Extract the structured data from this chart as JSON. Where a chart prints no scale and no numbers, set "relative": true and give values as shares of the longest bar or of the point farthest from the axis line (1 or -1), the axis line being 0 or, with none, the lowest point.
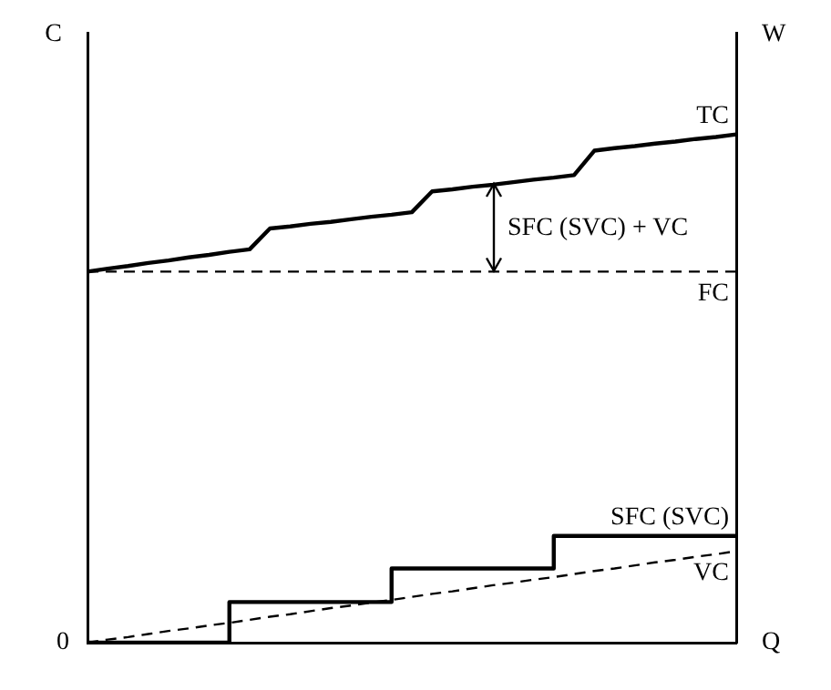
{
  "chart_data": {
    "type": "line",
    "relative": true,
    "ylabel": "C",
    "y2label": "W",
    "xlabel": "Q",
    "legend": false,
    "marker": "none",
    "grid": false,
    "categories": [
      null,
      null,
      null,
      null,
      null,
      null,
      null,
      null,
      null,
      null,
      null,
      null,
      null,
      null,
      null,
      null,
      null,
      null,
      null,
      null,
      null,
      null,
      null,
      null,
      null,
      null,
      null,
      null,
      null,
      null,
      null,
      null,
      null
    ],
    "series": [
      {
        "name": "TC",
        "color": "#000000",
        "line_style": "solid",
        "values": [
          0.73,
          0.736,
          0.741,
          0.747,
          0.752,
          0.758,
          0.763,
          0.769,
          0.774,
          0.815,
          0.819,
          0.824,
          0.828,
          0.833,
          0.838,
          0.842,
          0.847,
          0.888,
          0.892,
          0.897,
          0.901,
          0.906,
          0.911,
          0.915,
          0.92,
          0.968,
          0.973,
          0.977,
          0.982,
          0.986,
          0.991,
          0.995,
          1
        ]
      },
      {
        "name": "FC",
        "color": "#000000",
        "line_style": "dashed",
        "values": [
          0.73,
          0.73,
          0.73,
          0.73,
          0.73,
          0.73,
          0.73,
          0.73,
          0.73,
          0.73,
          0.73,
          0.73,
          0.73,
          0.73,
          0.73,
          0.73,
          0.73,
          0.73,
          0.73,
          0.73,
          0.73,
          0.73,
          0.73,
          0.73,
          0.73,
          0.73,
          0.73,
          0.73,
          0.73,
          0.73,
          0.73,
          0.73,
          0.73
        ]
      },
      {
        "name": "SFC (SVC)",
        "type": "step",
        "color": "#000000",
        "line_style": "solid",
        "values": [
          0,
          0,
          0,
          0,
          0,
          0,
          0,
          0,
          0.08,
          0.08,
          0.08,
          0.08,
          0.08,
          0.08,
          0.08,
          0.08,
          0.146,
          0.146,
          0.146,
          0.146,
          0.146,
          0.146,
          0.146,
          0.146,
          0.21,
          0.21,
          0.21,
          0.21,
          0.21,
          0.21,
          0.21,
          0.21,
          0.21
        ]
      },
      {
        "name": "VC",
        "color": "#000000",
        "line_style": "dashed",
        "values": [
          0,
          0.006,
          0.011,
          0.017,
          0.023,
          0.028,
          0.034,
          0.039,
          0.045,
          0.051,
          0.056,
          0.062,
          0.068,
          0.073,
          0.079,
          0.084,
          0.09,
          0.096,
          0.101,
          0.107,
          0.113,
          0.118,
          0.124,
          0.129,
          0.135,
          0.141,
          0.146,
          0.152,
          0.158,
          0.163,
          0.169,
          0.174,
          0.18
        ]
      }
    ],
    "annotations": [
      "SFC (SVC) + VC",
      "0"
    ]
  }
}
